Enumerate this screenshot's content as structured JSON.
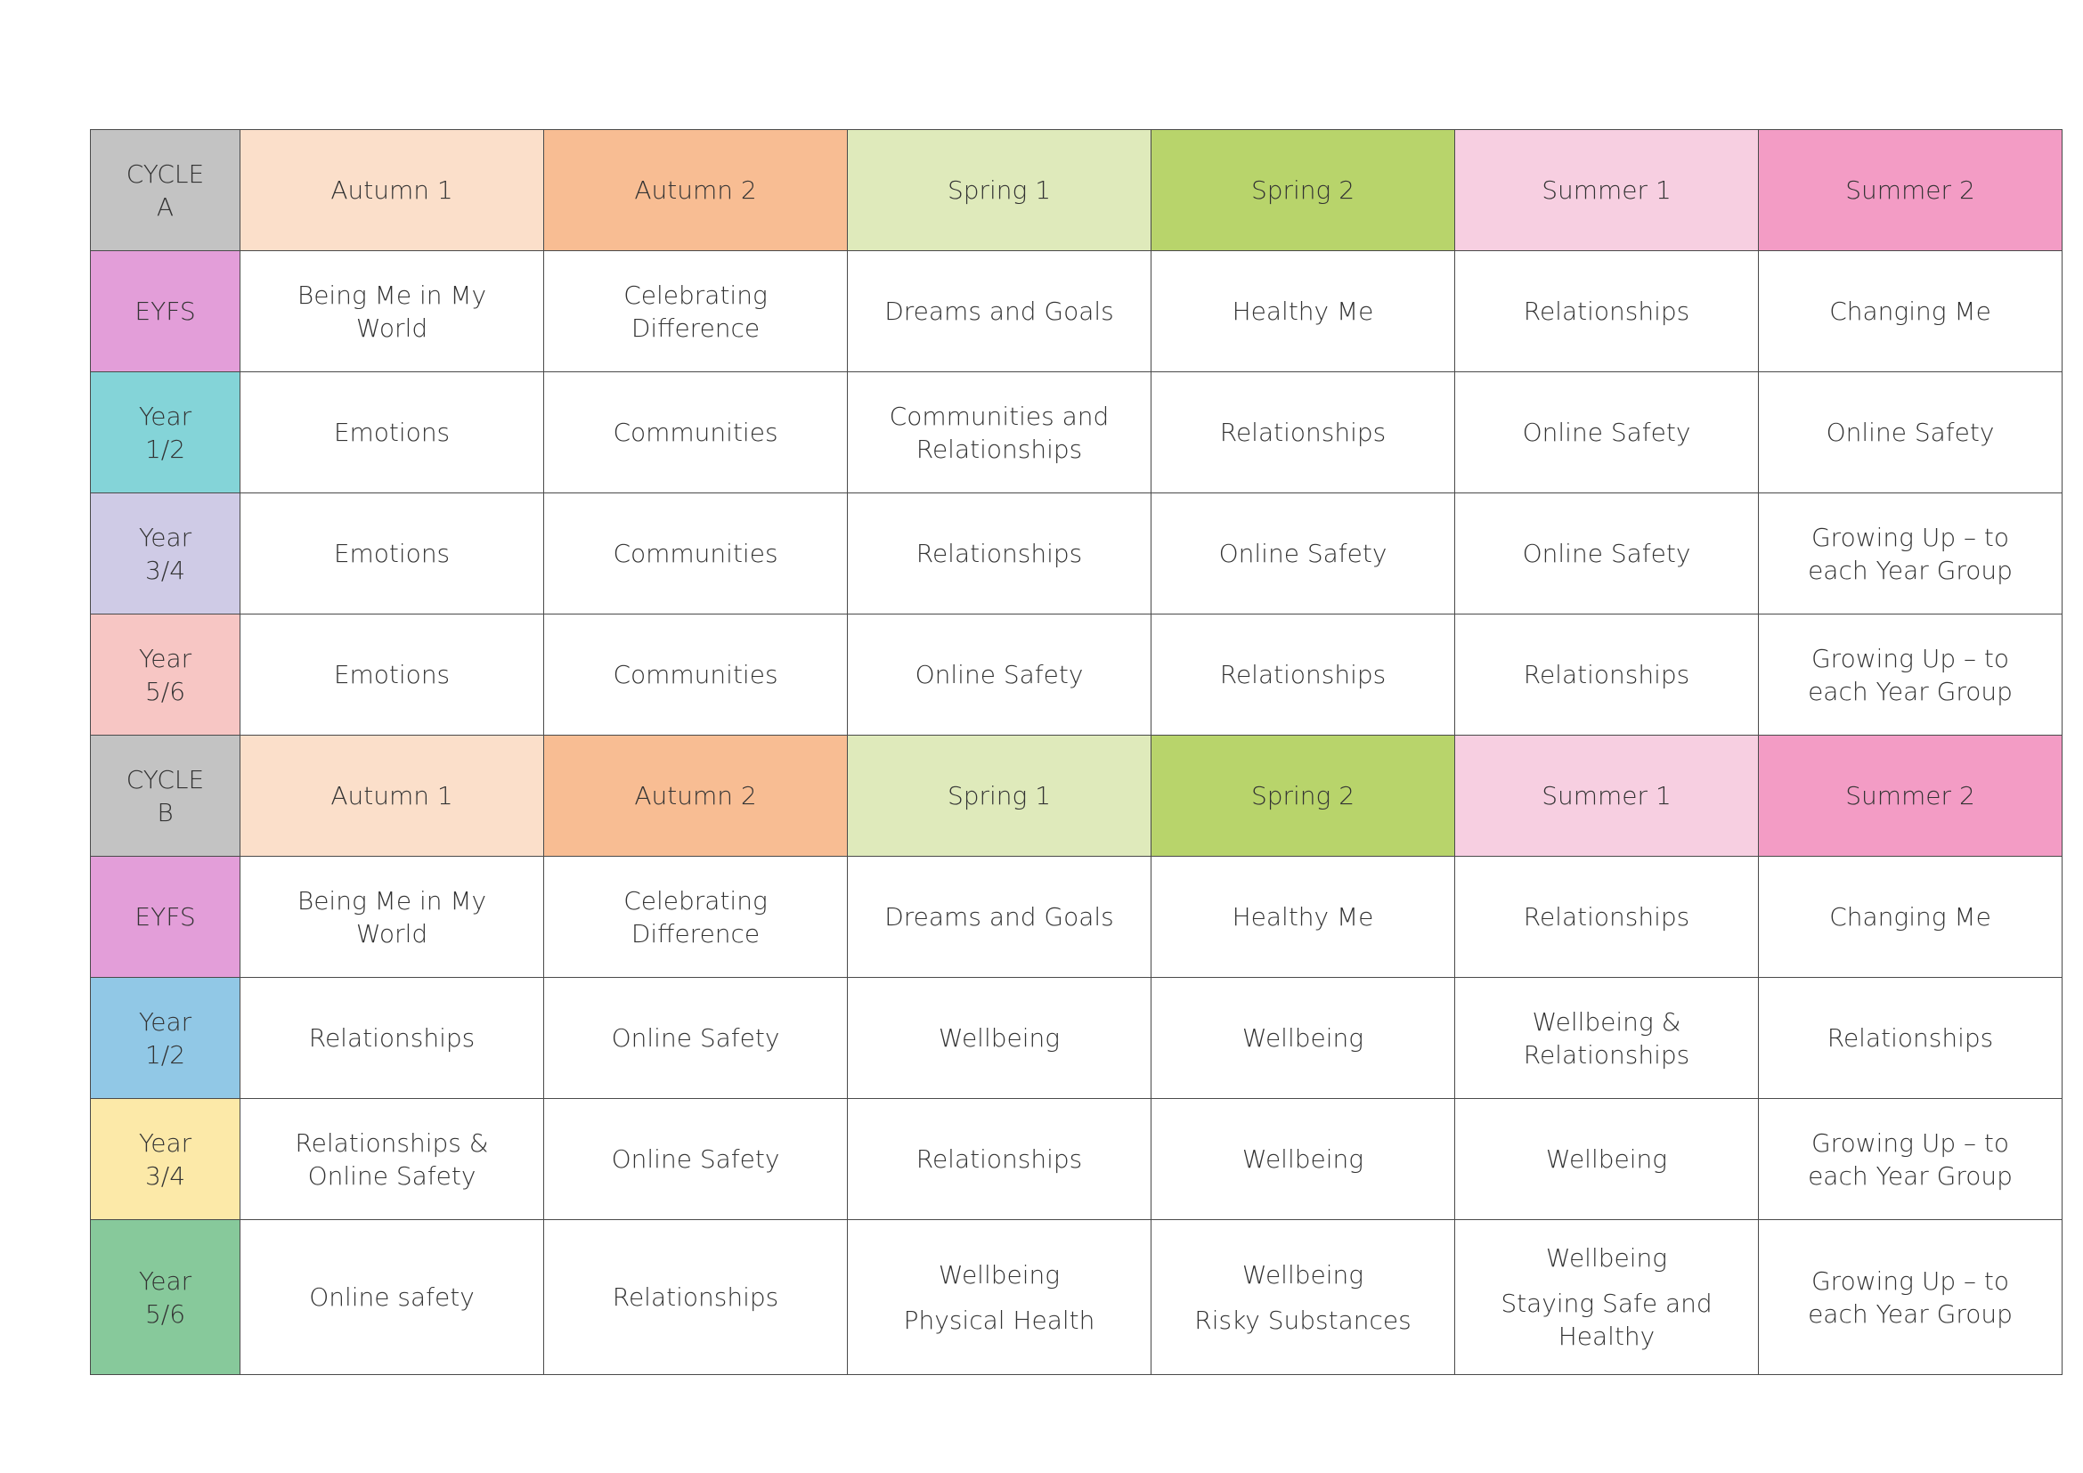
{
  "colors": {
    "autumn1": "#fbdfca",
    "autumn2": "#f8bd93",
    "spring1": "#dfeabb",
    "spring2": "#b8d46b",
    "summer1": "#f7cfe1",
    "summer2": "#f39cc5",
    "cycle": "#c3c3c3",
    "eyfs": "#e39ed9",
    "year12_a": "#84d4d8",
    "year34_a": "#cfcbe6",
    "year56_a": "#f7c6c4",
    "year12_b": "#91c8e6",
    "year34_b": "#fce9a8",
    "year56_b": "#87c99b"
  },
  "terms": [
    "Autumn 1",
    "Autumn 2",
    "Spring 1",
    "Spring 2",
    "Summer 1",
    "Summer 2"
  ],
  "cycles": [
    {
      "label": "CYCLE\nA",
      "rows": [
        {
          "year": "EYFS",
          "cells": [
            "Being Me in My\nWorld",
            "Celebrating\nDifference",
            "Dreams and Goals",
            "Healthy Me",
            "Relationships",
            "Changing Me"
          ]
        },
        {
          "year": "Year\n1/2",
          "cells": [
            "Emotions",
            "Communities",
            "Communities and\nRelationships",
            "Relationships",
            "Online Safety",
            "Online Safety"
          ]
        },
        {
          "year": "Year\n3/4",
          "cells": [
            "Emotions",
            "Communities",
            "Relationships",
            "Online Safety",
            "Online Safety",
            "Growing Up – to\neach Year Group"
          ]
        },
        {
          "year": "Year\n5/6",
          "cells": [
            "Emotions",
            "Communities",
            "Online Safety",
            "Relationships",
            "Relationships",
            "Growing Up – to\neach Year Group"
          ]
        }
      ]
    },
    {
      "label": "CYCLE\nB",
      "rows": [
        {
          "year": "EYFS",
          "cells": [
            "Being Me in My\nWorld",
            "Celebrating\nDifference",
            "Dreams and Goals",
            "Healthy Me",
            "Relationships",
            "Changing Me"
          ]
        },
        {
          "year": "Year\n1/2",
          "cells": [
            "Relationships",
            "Online Safety",
            "Wellbeing",
            "Wellbeing",
            "Wellbeing &\nRelationships",
            "Relationships"
          ]
        },
        {
          "year": "Year\n3/4",
          "cells": [
            "Relationships &\nOnline Safety",
            "Online Safety",
            "Relationships",
            "Wellbeing",
            "Wellbeing",
            "Growing Up – to\neach Year Group"
          ]
        },
        {
          "year": "Year\n5/6",
          "cells": [
            "Online safety",
            "Relationships",
            "Wellbeing",
            "Wellbeing",
            "Wellbeing",
            "Growing Up – to\neach Year Group"
          ],
          "extra": [
            "",
            "",
            "Physical Health",
            "Risky Substances",
            "Staying Safe and\nHealthy",
            ""
          ]
        }
      ]
    }
  ]
}
